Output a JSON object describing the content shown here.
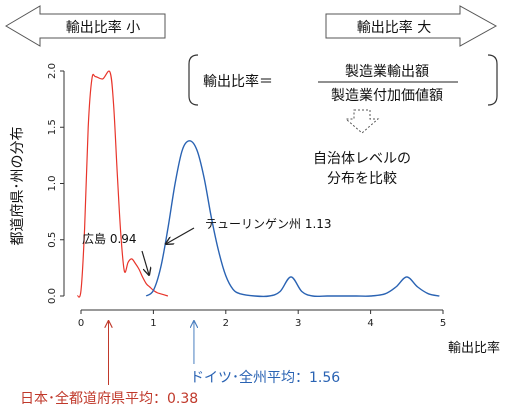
{
  "chart_data": {
    "type": "line",
    "xlabel": "輸出比率",
    "ylabel": "都道府県･州の分布",
    "xlim": [
      0,
      5
    ],
    "ylim": [
      0,
      2.0
    ],
    "x_ticks": [
      "0",
      "1",
      "2",
      "3",
      "4",
      "5"
    ],
    "y_ticks": [
      "0.0",
      "0.5",
      "1.0",
      "1.5",
      "2.0"
    ],
    "series": [
      {
        "color": "#e8352b",
        "x": [
          -0.05,
          0.0,
          0.05,
          0.1,
          0.15,
          0.2,
          0.3,
          0.4,
          0.45,
          0.5,
          0.55,
          0.6,
          0.65,
          0.7,
          0.75,
          0.8,
          0.85,
          0.9,
          0.95,
          1.0,
          1.05,
          1.1,
          1.2
        ],
        "y": [
          0.0,
          0.05,
          0.6,
          1.5,
          1.93,
          1.95,
          1.93,
          1.99,
          1.7,
          1.1,
          0.55,
          0.22,
          0.3,
          0.33,
          0.29,
          0.24,
          0.17,
          0.11,
          0.08,
          0.05,
          0.03,
          0.02,
          0.0
        ]
      },
      {
        "color": "#2a63b3",
        "x": [
          0.9,
          1.0,
          1.1,
          1.2,
          1.3,
          1.4,
          1.5,
          1.6,
          1.7,
          1.8,
          1.9,
          2.0,
          2.1,
          2.2,
          2.4,
          2.6,
          2.75,
          2.9,
          3.05,
          3.2,
          3.4,
          3.6,
          3.8,
          4.0,
          4.2,
          4.35,
          4.5,
          4.65,
          4.8,
          4.95
        ],
        "y": [
          0.0,
          0.05,
          0.25,
          0.6,
          1.0,
          1.3,
          1.38,
          1.3,
          1.05,
          0.7,
          0.4,
          0.18,
          0.06,
          0.02,
          0.0,
          0.0,
          0.04,
          0.17,
          0.04,
          0.0,
          0.0,
          0.0,
          0.0,
          0.0,
          0.02,
          0.08,
          0.17,
          0.08,
          0.02,
          0.0
        ]
      }
    ],
    "annotations": {
      "low_arrow_label": "輸出比率 小",
      "high_arrow_label": "輸出比率 大",
      "formula_lhs": "輸出比率＝",
      "formula_numerator": "製造業輸出額",
      "formula_denominator": "製造業付加価値額",
      "compare_line1": "自治体レベルの",
      "compare_line2": "分布を比較",
      "hiroshima_label": "広島 0.94",
      "hiroshima_x": 0.94,
      "thuringia_label": "テューリンゲン州 1.13",
      "thuringia_x": 1.13,
      "germany_mean_label": "ドイツ･全州平均：1.56",
      "germany_mean_x": 1.56,
      "japan_mean_label": "日本･全都道府県平均：0.38",
      "japan_mean_x": 0.38
    }
  }
}
